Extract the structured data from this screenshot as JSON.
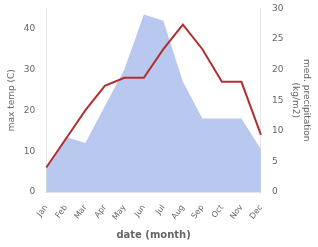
{
  "chart_data": {
    "type": "line",
    "xlabel": "date (month)",
    "ylabel": "max temp (C)",
    "y2label": "med. precipitation\n(kg/m2)",
    "categories": [
      "Jan",
      "Feb",
      "Mar",
      "Apr",
      "May",
      "Jun",
      "Jul",
      "Aug",
      "Sep",
      "Oct",
      "Nov",
      "Dec"
    ],
    "series": [
      {
        "type": "area",
        "color": "#b8c8ee",
        "axis": "y2",
        "values": [
          4,
          9,
          8,
          14,
          20,
          29,
          28,
          18,
          12,
          12,
          12,
          7
        ]
      },
      {
        "type": "line",
        "color": "#b03030",
        "values": [
          6,
          13,
          20,
          26,
          28,
          28,
          35,
          41,
          35,
          27,
          27,
          14
        ]
      }
    ],
    "ylim": [
      0,
      45
    ],
    "yticks": [
      0,
      10,
      20,
      30,
      40
    ],
    "y2lim": [
      0,
      30
    ],
    "y2ticks": [
      0,
      5,
      10,
      15,
      20,
      25,
      30
    ],
    "grid": false
  }
}
